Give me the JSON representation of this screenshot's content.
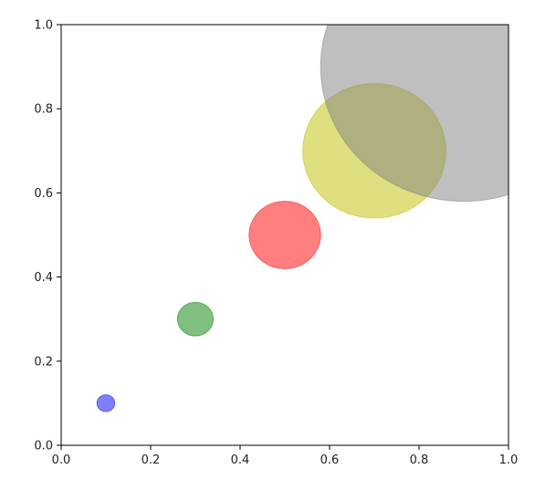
{
  "chart_data": {
    "type": "scatter",
    "title": "",
    "xlabel": "",
    "ylabel": "",
    "xlim": [
      0.0,
      1.0
    ],
    "ylim": [
      0.0,
      1.0
    ],
    "grid": false,
    "x_ticks": [
      "0.0",
      "0.2",
      "0.4",
      "0.6",
      "0.8",
      "1.0"
    ],
    "y_ticks": [
      "0.0",
      "0.2",
      "0.4",
      "0.6",
      "0.8",
      "1.0"
    ],
    "points": [
      {
        "x": 0.1,
        "y": 0.1,
        "size_x": 0.02,
        "size_y": 0.02,
        "color": "#0000ff"
      },
      {
        "x": 0.3,
        "y": 0.3,
        "size_x": 0.04,
        "size_y": 0.04,
        "color": "#008000"
      },
      {
        "x": 0.5,
        "y": 0.5,
        "size_x": 0.08,
        "size_y": 0.08,
        "color": "#ff0000"
      },
      {
        "x": 0.7,
        "y": 0.7,
        "size_x": 0.16,
        "size_y": 0.16,
        "color": "#bfbf00"
      },
      {
        "x": 0.9,
        "y": 0.9,
        "size_x": 0.32,
        "size_y": 0.32,
        "color": "#808080"
      }
    ],
    "opacity": 0.5
  }
}
